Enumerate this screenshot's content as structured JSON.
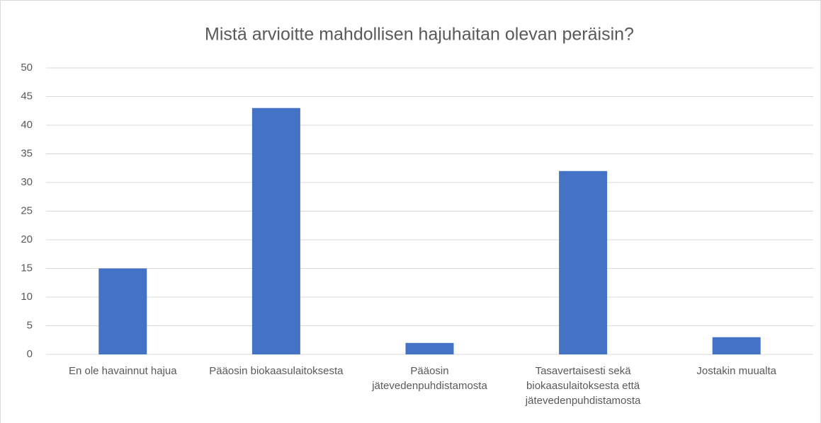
{
  "chart_data": {
    "type": "bar",
    "title": "Mistä arvioitte mahdollisen hajuhaitan olevan peräisin?",
    "categories": [
      "En ole havainnut hajua",
      "Pääosin biokaasulaitoksesta",
      "Pääosin jätevedenpuhdistamosta",
      "Tasavertaisesti sekä biokaasulaitoksesta että jätevedenpuhdistamosta",
      "Jostakin muualta"
    ],
    "values": [
      15,
      43,
      2,
      32,
      3
    ],
    "color": "#4472c4",
    "ylim": [
      0,
      50
    ],
    "yticks": [
      0,
      5,
      10,
      15,
      20,
      25,
      30,
      35,
      40,
      45,
      50
    ],
    "grid": true
  }
}
